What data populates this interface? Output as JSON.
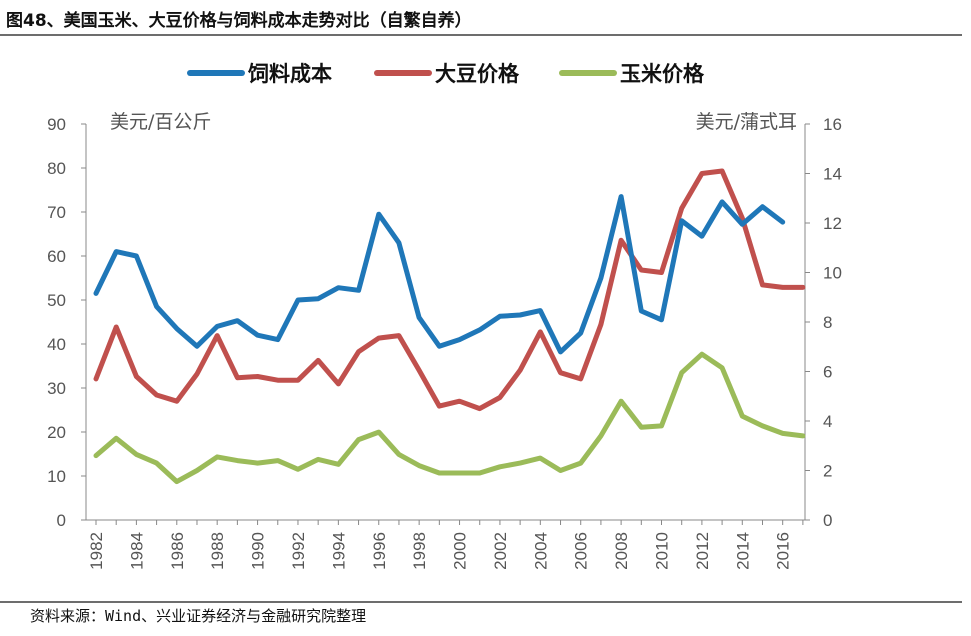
{
  "title": "图48、美国玉米、大豆价格与饲料成本走势对比（自繁自养）",
  "source": "资料来源：Wind、兴业证券经济与金融研究院整理",
  "chart_data": {
    "type": "line",
    "x": [
      1982,
      1983,
      1984,
      1985,
      1986,
      1987,
      1988,
      1989,
      1990,
      1991,
      1992,
      1993,
      1994,
      1995,
      1996,
      1997,
      1998,
      1999,
      2000,
      2001,
      2002,
      2003,
      2004,
      2005,
      2006,
      2007,
      2008,
      2009,
      2010,
      2011,
      2012,
      2013,
      2014,
      2015,
      2016,
      2017
    ],
    "x_ticks": [
      "1982",
      "1984",
      "1986",
      "1988",
      "1990",
      "1992",
      "1994",
      "1996",
      "1998",
      "2000",
      "2002",
      "2004",
      "2006",
      "2008",
      "2010",
      "2012",
      "2014",
      "2016"
    ],
    "left_axis": {
      "label": "美元/百公斤",
      "ylim": [
        0,
        90
      ],
      "ticks": [
        "0",
        "10",
        "20",
        "30",
        "40",
        "50",
        "60",
        "70",
        "80",
        "90"
      ]
    },
    "right_axis": {
      "label": "美元/蒲式耳",
      "ylim": [
        0,
        16
      ],
      "ticks": [
        "0",
        "2",
        "4",
        "6",
        "8",
        "10",
        "12",
        "14",
        "16"
      ]
    },
    "series": [
      {
        "name": "饲料成本",
        "axis": "left",
        "color": "#1f77b8",
        "values": [
          51.5,
          61,
          60,
          48.5,
          43.5,
          39.5,
          44,
          45.3,
          42,
          41,
          50,
          50.3,
          52.8,
          52.2,
          69.5,
          63,
          46,
          39.5,
          41,
          43.2,
          46.3,
          46.6,
          47.6,
          38.2,
          42.5,
          55,
          73.5,
          47.5,
          45.5,
          68,
          64.5,
          72.3,
          67.2,
          71.2,
          67.7,
          null
        ]
      },
      {
        "name": "大豆价格",
        "axis": "right",
        "color": "#c0504d",
        "values": [
          5.7,
          7.8,
          5.8,
          5.05,
          4.8,
          5.9,
          7.45,
          5.75,
          5.8,
          5.65,
          5.65,
          6.45,
          5.5,
          6.8,
          7.35,
          7.45,
          6.05,
          4.6,
          4.8,
          4.5,
          4.95,
          6.05,
          7.6,
          5.95,
          5.7,
          7.9,
          11.3,
          10.1,
          10,
          12.6,
          14,
          14.1,
          12.2,
          9.5,
          9.4,
          9.4
        ]
      },
      {
        "name": "玉米价格",
        "axis": "right",
        "color": "#9bbb59",
        "values": [
          2.6,
          3.3,
          2.65,
          2.3,
          1.55,
          2,
          2.55,
          2.4,
          2.3,
          2.4,
          2.05,
          2.45,
          2.25,
          3.25,
          3.55,
          2.65,
          2.2,
          1.9,
          1.9,
          1.9,
          2.15,
          2.3,
          2.5,
          2,
          2.3,
          3.4,
          4.8,
          3.75,
          3.8,
          5.95,
          6.7,
          6.15,
          4.2,
          3.8,
          3.5,
          3.4
        ]
      }
    ]
  }
}
